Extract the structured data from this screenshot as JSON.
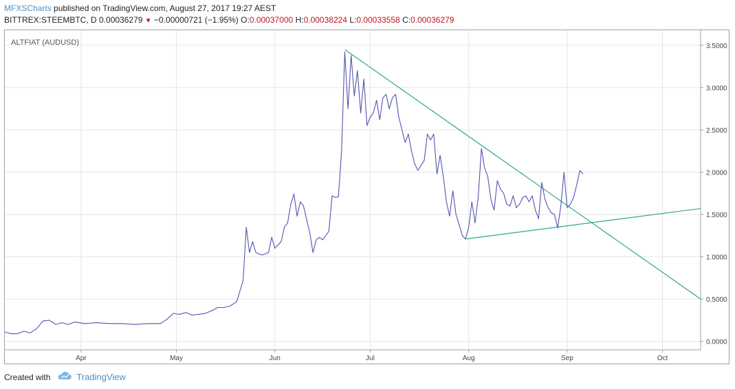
{
  "header": {
    "author": "MFXSCharts",
    "published_text": "published on TradingView.com, August 27, 2017 19:27 AEST"
  },
  "ticker": {
    "symbol": "BITTREX:STEEMBTC, D",
    "last": "0.00036279",
    "change": "−0.00000721 (−1.95%)",
    "o_label": "O:",
    "o_value": "0.00037000",
    "h_label": "H:",
    "h_value": "0.00038224",
    "l_label": "L:",
    "l_value": "0.00033558",
    "c_label": "C:",
    "c_value": "0.00036279"
  },
  "footer": {
    "created_with": "Created with",
    "brand": "TradingView"
  },
  "chart_data": {
    "type": "line",
    "title": "ALTFIAT (AUDUSD)",
    "ylim": [
      -0.1,
      3.58
    ],
    "yticks": [
      {
        "value": 3.5,
        "label": "3.5000"
      },
      {
        "value": 3.0,
        "label": "3.0000"
      },
      {
        "value": 2.5,
        "label": "2.5000"
      },
      {
        "value": 2.0,
        "label": "2.0000"
      },
      {
        "value": 1.5,
        "label": "1.5000"
      },
      {
        "value": 1.0,
        "label": "1.0000"
      },
      {
        "value": 0.5,
        "label": "0.5000"
      },
      {
        "value": 0.0,
        "label": "0.0000"
      }
    ],
    "xlim": [
      "2017-03-08",
      "2017-10-13"
    ],
    "xticks": [
      {
        "date": "2017-04-01",
        "label": "Apr"
      },
      {
        "date": "2017-05-01",
        "label": "May"
      },
      {
        "date": "2017-06-01",
        "label": "Jun"
      },
      {
        "date": "2017-07-01",
        "label": "Jul"
      },
      {
        "date": "2017-08-01",
        "label": "Aug"
      },
      {
        "date": "2017-09-01",
        "label": "Sep"
      },
      {
        "date": "2017-10-01",
        "label": "Oct"
      }
    ],
    "grid": true,
    "colors": {
      "series": "#5353b3",
      "trendline": "#2ea882",
      "grid": "#e6e6e6",
      "axis": "#9aa0a8",
      "tick_text": "#444444"
    },
    "series": [
      {
        "values": [
          [
            "2017-03-08",
            0.11
          ],
          [
            "2017-03-10",
            0.09
          ],
          [
            "2017-03-12",
            0.09
          ],
          [
            "2017-03-14",
            0.12
          ],
          [
            "2017-03-16",
            0.1
          ],
          [
            "2017-03-18",
            0.15
          ],
          [
            "2017-03-20",
            0.24
          ],
          [
            "2017-03-22",
            0.25
          ],
          [
            "2017-03-24",
            0.2
          ],
          [
            "2017-03-26",
            0.22
          ],
          [
            "2017-03-28",
            0.2
          ],
          [
            "2017-03-30",
            0.23
          ],
          [
            "2017-04-02",
            0.21
          ],
          [
            "2017-04-06",
            0.22
          ],
          [
            "2017-04-10",
            0.21
          ],
          [
            "2017-04-14",
            0.21
          ],
          [
            "2017-04-18",
            0.2
          ],
          [
            "2017-04-22",
            0.21
          ],
          [
            "2017-04-26",
            0.21
          ],
          [
            "2017-04-28",
            0.26
          ],
          [
            "2017-04-30",
            0.33
          ],
          [
            "2017-05-02",
            0.32
          ],
          [
            "2017-05-04",
            0.34
          ],
          [
            "2017-05-06",
            0.31
          ],
          [
            "2017-05-08",
            0.32
          ],
          [
            "2017-05-10",
            0.33
          ],
          [
            "2017-05-12",
            0.36
          ],
          [
            "2017-05-14",
            0.4
          ],
          [
            "2017-05-16",
            0.4
          ],
          [
            "2017-05-18",
            0.42
          ],
          [
            "2017-05-20",
            0.47
          ],
          [
            "2017-05-22",
            0.72
          ],
          [
            "2017-05-23",
            1.35
          ],
          [
            "2017-05-24",
            1.05
          ],
          [
            "2017-05-25",
            1.18
          ],
          [
            "2017-05-26",
            1.05
          ],
          [
            "2017-05-28",
            1.02
          ],
          [
            "2017-05-30",
            1.05
          ],
          [
            "2017-05-31",
            1.23
          ],
          [
            "2017-06-01",
            1.1
          ],
          [
            "2017-06-03",
            1.18
          ],
          [
            "2017-06-04",
            1.35
          ],
          [
            "2017-06-05",
            1.4
          ],
          [
            "2017-06-06",
            1.62
          ],
          [
            "2017-06-07",
            1.74
          ],
          [
            "2017-06-08",
            1.48
          ],
          [
            "2017-06-09",
            1.65
          ],
          [
            "2017-06-10",
            1.6
          ],
          [
            "2017-06-12",
            1.28
          ],
          [
            "2017-06-13",
            1.05
          ],
          [
            "2017-06-14",
            1.2
          ],
          [
            "2017-06-15",
            1.23
          ],
          [
            "2017-06-16",
            1.2
          ],
          [
            "2017-06-17",
            1.25
          ],
          [
            "2017-06-18",
            1.3
          ],
          [
            "2017-06-19",
            1.72
          ],
          [
            "2017-06-20",
            1.7
          ],
          [
            "2017-06-21",
            1.71
          ],
          [
            "2017-06-22",
            2.25
          ],
          [
            "2017-06-23",
            3.42
          ],
          [
            "2017-06-24",
            2.75
          ],
          [
            "2017-06-25",
            3.38
          ],
          [
            "2017-06-26",
            2.9
          ],
          [
            "2017-06-27",
            3.2
          ],
          [
            "2017-06-28",
            2.7
          ],
          [
            "2017-06-29",
            3.1
          ],
          [
            "2017-06-30",
            2.55
          ],
          [
            "2017-07-01",
            2.65
          ],
          [
            "2017-07-02",
            2.7
          ],
          [
            "2017-07-03",
            2.85
          ],
          [
            "2017-07-04",
            2.62
          ],
          [
            "2017-07-05",
            2.88
          ],
          [
            "2017-07-06",
            2.92
          ],
          [
            "2017-07-07",
            2.75
          ],
          [
            "2017-07-08",
            2.88
          ],
          [
            "2017-07-09",
            2.92
          ],
          [
            "2017-07-10",
            2.65
          ],
          [
            "2017-07-11",
            2.5
          ],
          [
            "2017-07-12",
            2.35
          ],
          [
            "2017-07-13",
            2.45
          ],
          [
            "2017-07-14",
            2.25
          ],
          [
            "2017-07-15",
            2.1
          ],
          [
            "2017-07-16",
            2.02
          ],
          [
            "2017-07-17",
            2.08
          ],
          [
            "2017-07-18",
            2.14
          ],
          [
            "2017-07-19",
            2.45
          ],
          [
            "2017-07-20",
            2.38
          ],
          [
            "2017-07-21",
            2.45
          ],
          [
            "2017-07-22",
            1.98
          ],
          [
            "2017-07-23",
            2.2
          ],
          [
            "2017-07-24",
            1.95
          ],
          [
            "2017-07-25",
            1.65
          ],
          [
            "2017-07-26",
            1.48
          ],
          [
            "2017-07-27",
            1.78
          ],
          [
            "2017-07-28",
            1.5
          ],
          [
            "2017-07-29",
            1.38
          ],
          [
            "2017-07-30",
            1.25
          ],
          [
            "2017-07-31",
            1.21
          ],
          [
            "2017-08-01",
            1.35
          ],
          [
            "2017-08-02",
            1.65
          ],
          [
            "2017-08-03",
            1.4
          ],
          [
            "2017-08-04",
            1.7
          ],
          [
            "2017-08-05",
            2.28
          ],
          [
            "2017-08-06",
            2.05
          ],
          [
            "2017-08-07",
            1.95
          ],
          [
            "2017-08-08",
            1.68
          ],
          [
            "2017-08-09",
            1.55
          ],
          [
            "2017-08-10",
            1.9
          ],
          [
            "2017-08-11",
            1.8
          ],
          [
            "2017-08-12",
            1.75
          ],
          [
            "2017-08-13",
            1.62
          ],
          [
            "2017-08-14",
            1.6
          ],
          [
            "2017-08-15",
            1.72
          ],
          [
            "2017-08-16",
            1.58
          ],
          [
            "2017-08-17",
            1.62
          ],
          [
            "2017-08-18",
            1.7
          ],
          [
            "2017-08-19",
            1.72
          ],
          [
            "2017-08-20",
            1.65
          ],
          [
            "2017-08-21",
            1.72
          ],
          [
            "2017-08-22",
            1.55
          ],
          [
            "2017-08-23",
            1.45
          ],
          [
            "2017-08-24",
            1.88
          ],
          [
            "2017-08-25",
            1.68
          ],
          [
            "2017-08-26",
            1.58
          ],
          [
            "2017-08-27",
            1.52
          ],
          [
            "2017-08-28",
            1.5
          ],
          [
            "2017-08-29",
            1.34
          ],
          [
            "2017-08-30",
            1.6
          ],
          [
            "2017-08-31",
            2.0
          ],
          [
            "2017-09-01",
            1.58
          ],
          [
            "2017-09-02",
            1.62
          ],
          [
            "2017-09-03",
            1.7
          ],
          [
            "2017-09-04",
            1.85
          ],
          [
            "2017-09-05",
            2.02
          ],
          [
            "2017-09-06",
            1.98
          ]
        ]
      }
    ],
    "trendlines": [
      {
        "start": [
          "2017-06-23",
          3.45
        ],
        "end": [
          "2017-10-13",
          0.5
        ]
      },
      {
        "start": [
          "2017-07-31",
          1.21
        ],
        "end": [
          "2017-10-13",
          1.57
        ]
      }
    ]
  }
}
